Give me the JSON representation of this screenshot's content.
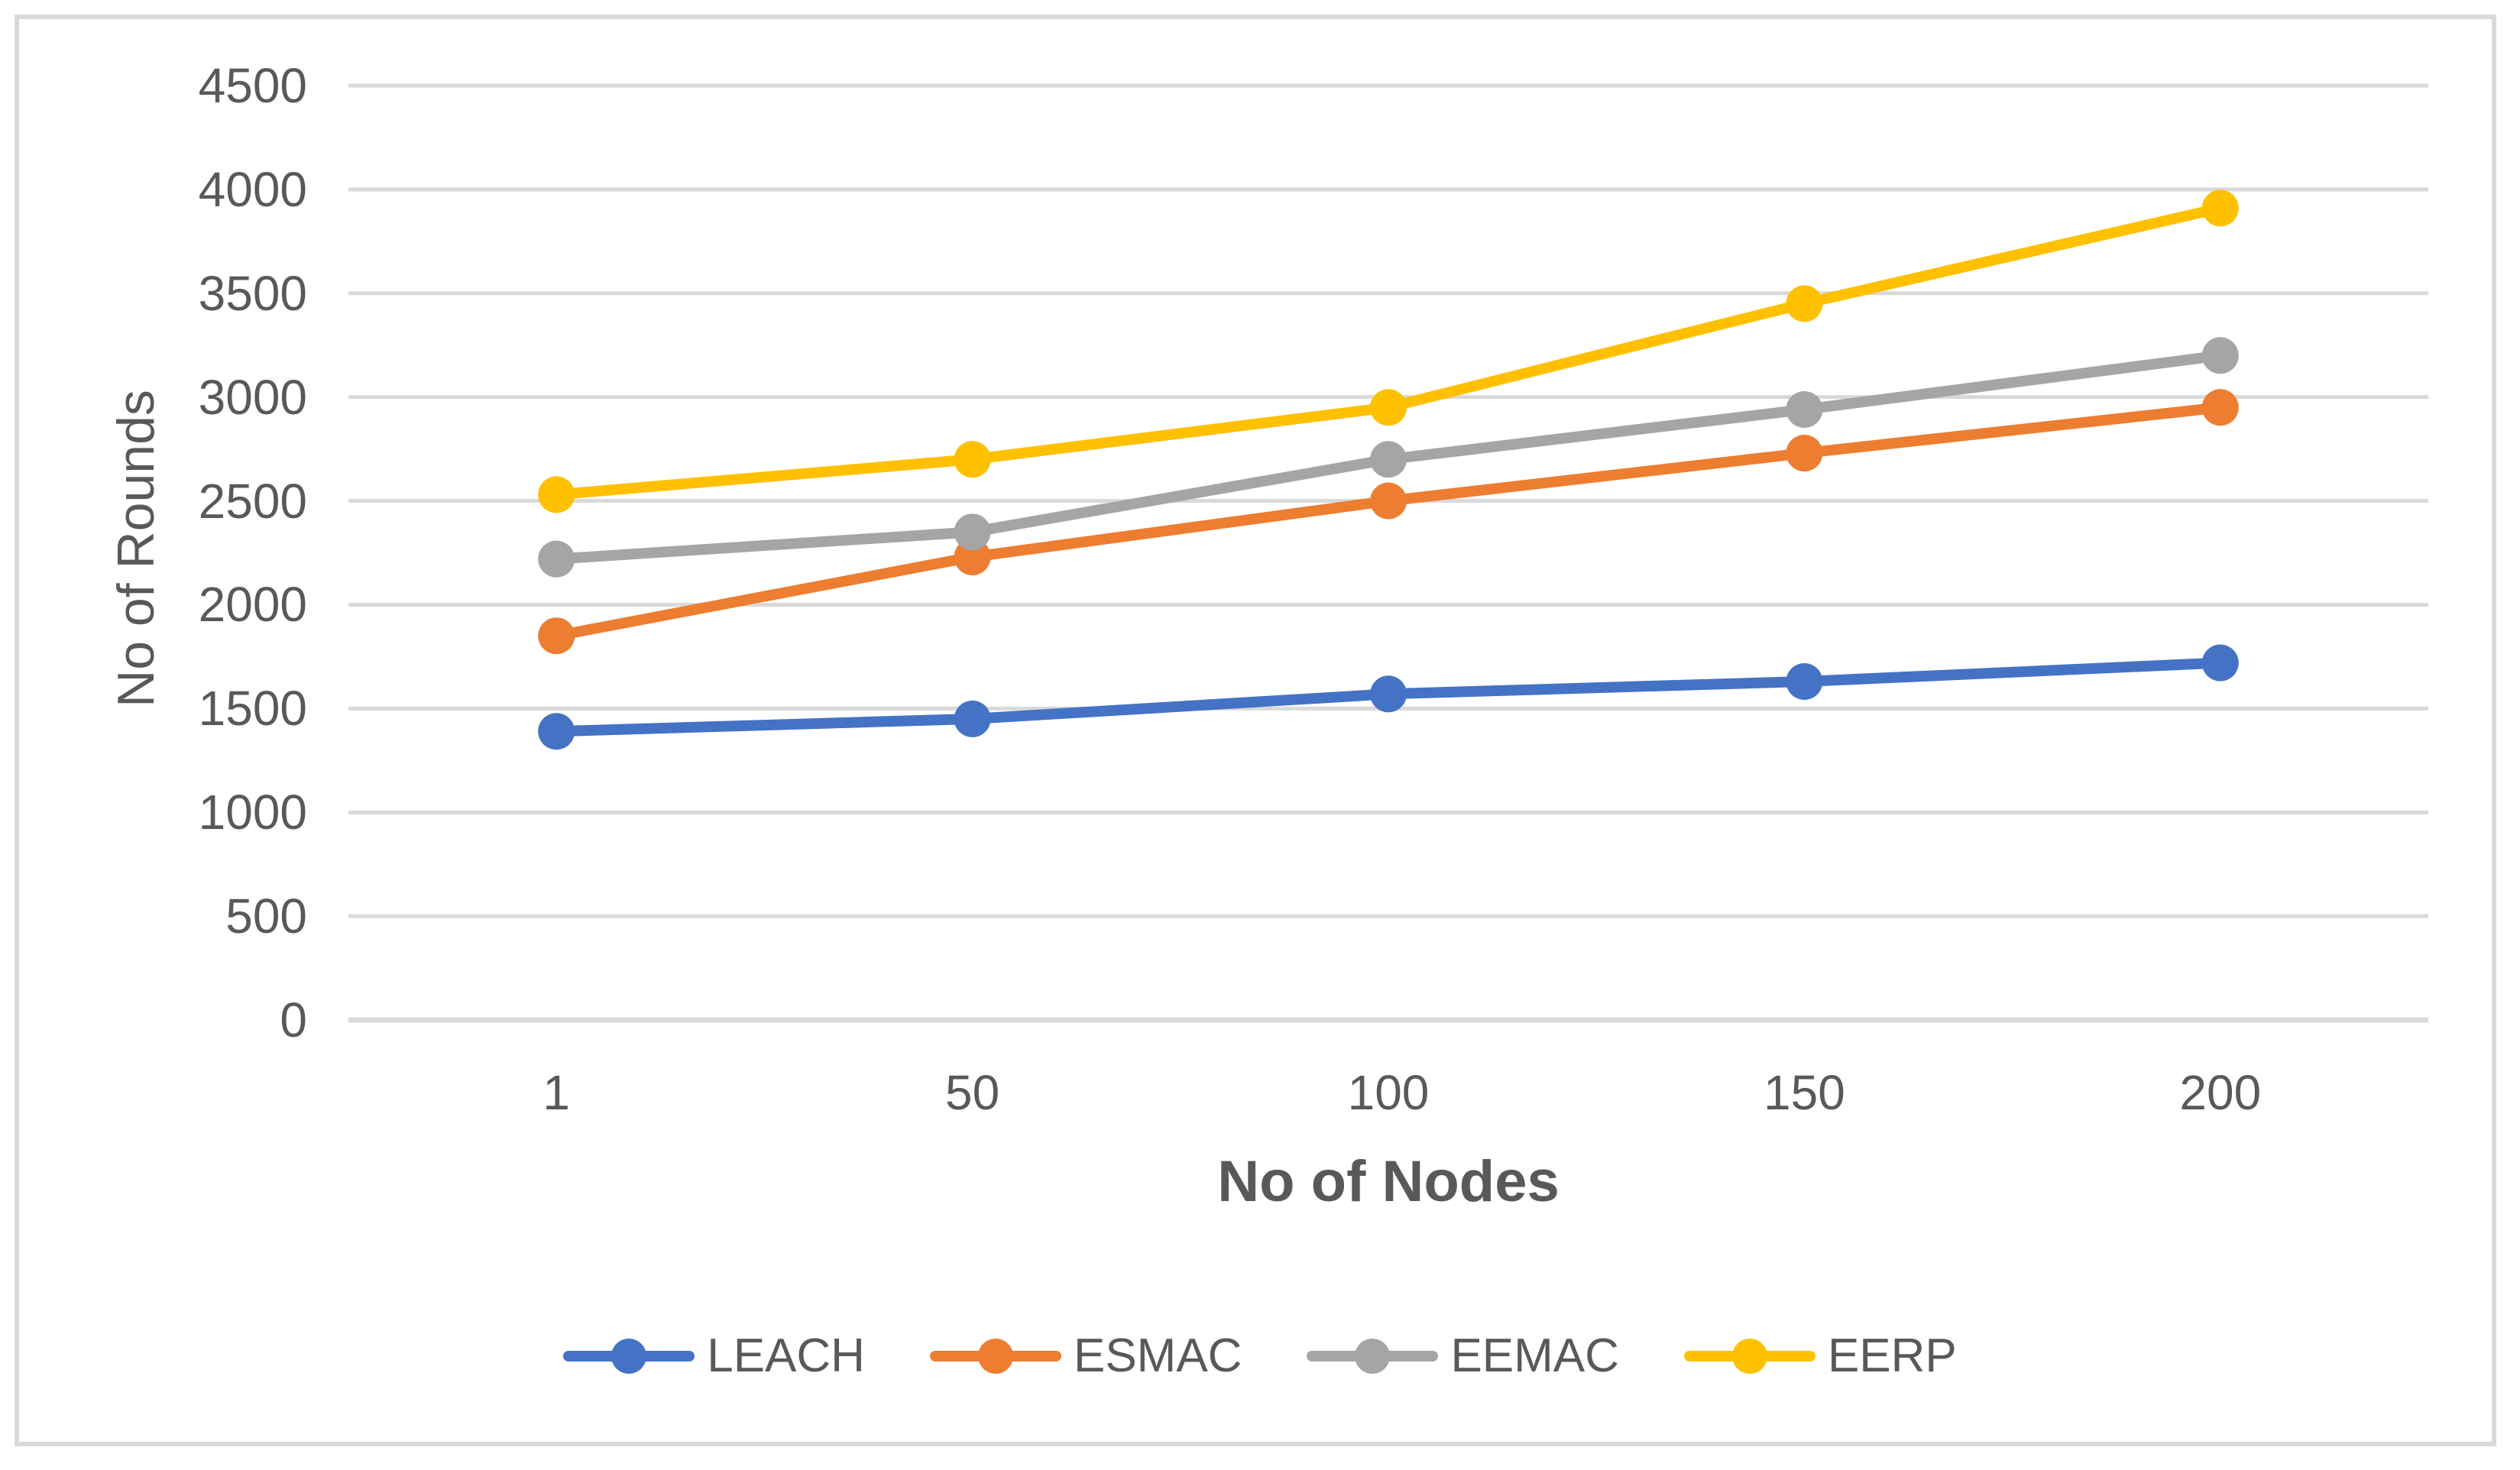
{
  "chart_data": {
    "type": "line",
    "title": "",
    "xlabel": "No of Nodes",
    "ylabel": "No of Rounds",
    "categories": [
      "1",
      "50",
      "100",
      "150",
      "200"
    ],
    "series": [
      {
        "name": "LEACH",
        "color": "#4472C4",
        "values": [
          1390,
          1450,
          1570,
          1630,
          1720
        ]
      },
      {
        "name": "ESMAC",
        "color": "#ED7D31",
        "values": [
          1850,
          2230,
          2500,
          2730,
          2950
        ]
      },
      {
        "name": "EEMAC",
        "color": "#A5A5A5",
        "values": [
          2220,
          2350,
          2700,
          2940,
          3200
        ]
      },
      {
        "name": "EERP",
        "color": "#FFC000",
        "values": [
          2530,
          2700,
          2950,
          3450,
          3910
        ]
      }
    ],
    "ylim": [
      0,
      4500
    ],
    "ytick_step": 500,
    "grid": true,
    "legend_position": "bottom",
    "marker": "circle"
  },
  "colors": {
    "text": "#595959",
    "gridline": "#D9D9D9",
    "border": "#D9D9D9",
    "background": "#FFFFFF"
  }
}
